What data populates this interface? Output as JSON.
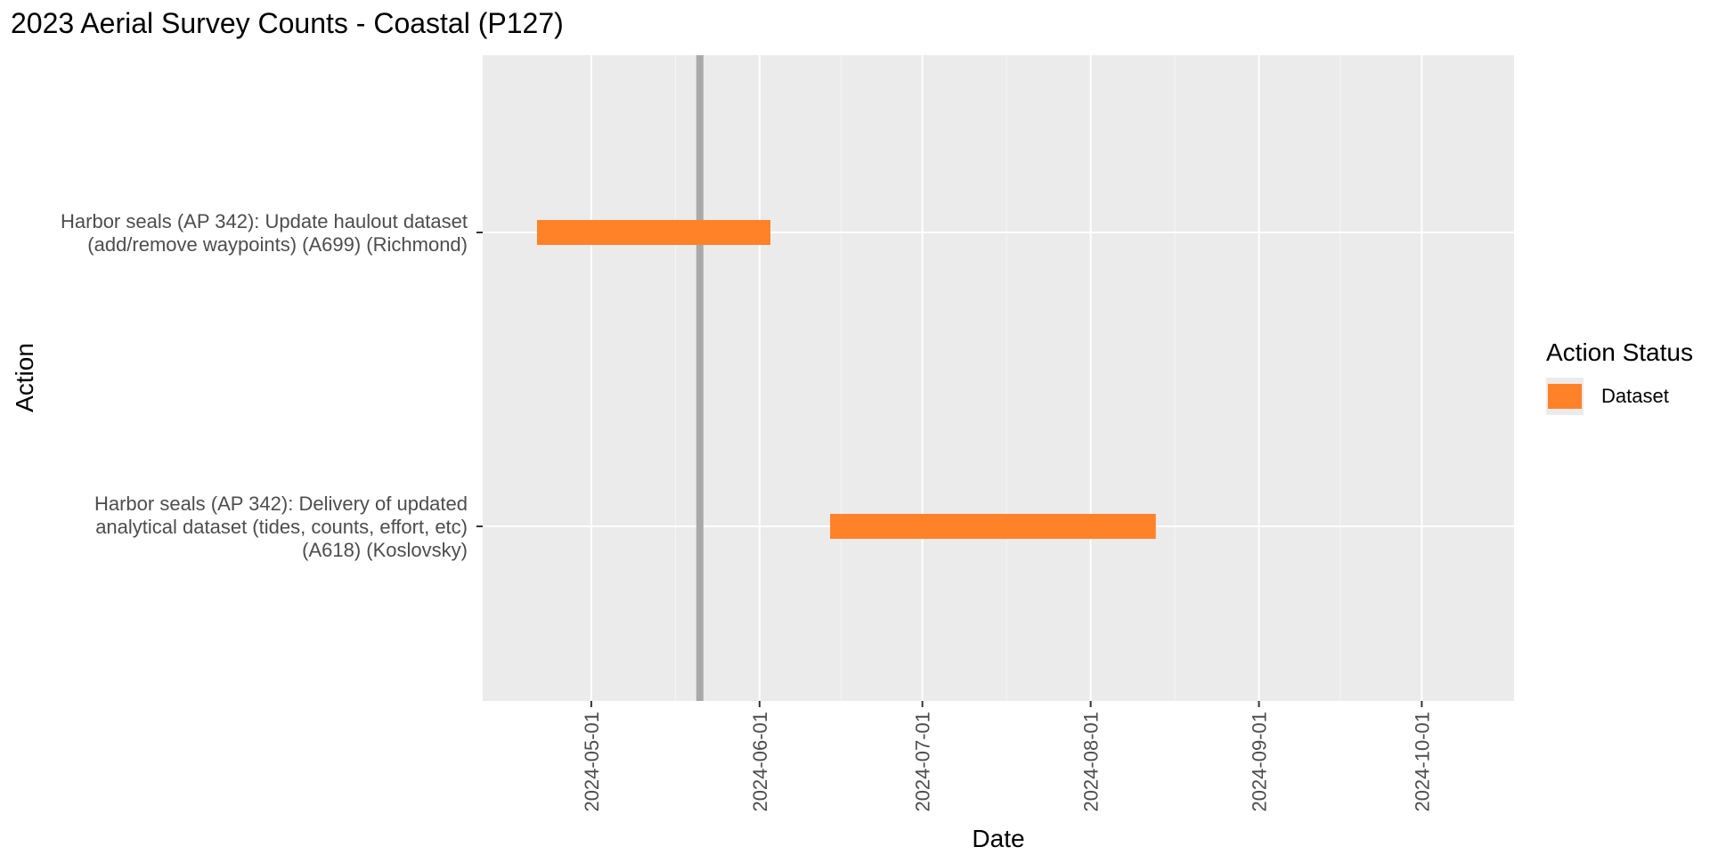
{
  "chart_data": {
    "type": "gantt",
    "title": "2023 Aerial Survey Counts - Coastal (P127)",
    "xlabel": "Date",
    "ylabel": "Action",
    "xlim": [
      "2024-04-11",
      "2024-10-18"
    ],
    "x_ticks": [
      "2024-05-01",
      "2024-06-01",
      "2024-07-01",
      "2024-08-01",
      "2024-09-01",
      "2024-10-01"
    ],
    "reference_line": {
      "date": "2024-05-21",
      "color": "#a9a9a9"
    },
    "categories": [
      {
        "label_lines": [
          "Harbor seals (AP 342): Update haulout dataset",
          "(add/remove waypoints) (A699) (Richmond)"
        ],
        "start": "2024-04-21",
        "end": "2024-06-03",
        "status": "Dataset"
      },
      {
        "label_lines": [
          "Harbor seals (AP 342): Delivery of updated",
          "analytical dataset (tides, counts, effort, etc)",
          "(A618) (Koslovsky)"
        ],
        "start": "2024-06-14",
        "end": "2024-08-13",
        "status": "Dataset"
      }
    ],
    "legend": {
      "title": "Action Status",
      "position": "right",
      "items": [
        {
          "label": "Dataset",
          "color": "#ff8228"
        }
      ]
    },
    "panel_background": "#ebebeb",
    "grid": true
  }
}
